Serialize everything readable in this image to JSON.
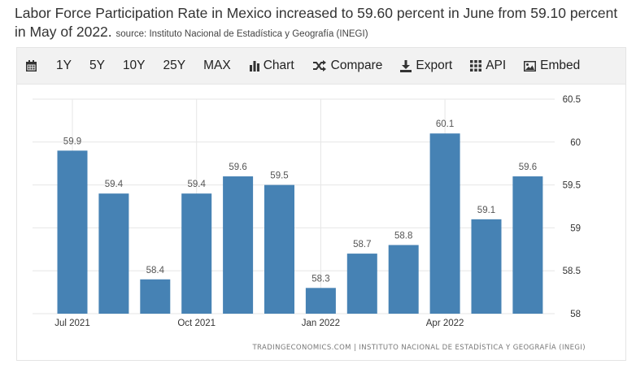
{
  "headline": {
    "text": "Labor Force Participation Rate in Mexico increased to 59.60 percent in June from 59.10 percent in May of 2022.",
    "source": "source: Instituto Nacional de Estadística y Geografía (INEGI)"
  },
  "toolbar": {
    "calendar_icon": "calendar-icon",
    "range_1y": "1Y",
    "range_5y": "5Y",
    "range_10y": "10Y",
    "range_25y": "25Y",
    "range_max": "MAX",
    "chart_label": "Chart",
    "compare_label": "Compare",
    "export_label": "Export",
    "api_label": "API",
    "embed_label": "Embed"
  },
  "footer": "TRADINGECONOMICS.COM | INSTITUTO NACIONAL DE ESTADÍSTICA Y GEOGRAFÍA (INEGI)",
  "colors": {
    "bar": "#4682b4",
    "grid": "#e6e6e6",
    "label": "#555555"
  },
  "chart_data": {
    "type": "bar",
    "categories": [
      "Jul 2021",
      "Aug 2021",
      "Sep 2021",
      "Oct 2021",
      "Nov 2021",
      "Dec 2021",
      "Jan 2022",
      "Feb 2022",
      "Mar 2022",
      "Apr 2022",
      "May 2022",
      "Jun 2022"
    ],
    "values": [
      59.9,
      59.4,
      58.4,
      59.4,
      59.6,
      59.5,
      58.3,
      58.7,
      58.8,
      60.1,
      59.1,
      59.6
    ],
    "data_labels": [
      "59.9",
      "59.4",
      "58.4",
      "59.4",
      "59.6",
      "59.5",
      "58.3",
      "58.7",
      "58.8",
      "60.1",
      "59.1",
      "59.6"
    ],
    "x_tick_labels": [
      {
        "category": "Jul 2021",
        "label": "Jul 2021"
      },
      {
        "category": "Oct 2021",
        "label": "Oct 2021"
      },
      {
        "category": "Jan 2022",
        "label": "Jan 2022"
      },
      {
        "category": "Apr 2022",
        "label": "Apr 2022"
      }
    ],
    "y_ticks": [
      58,
      58.5,
      59,
      59.5,
      60,
      60.5
    ],
    "y_tick_labels": [
      "58",
      "58.5",
      "59",
      "59.5",
      "60",
      "60.5"
    ],
    "ylim": [
      58,
      60.5
    ],
    "y_axis_side": "right",
    "grid": true,
    "legend": "none",
    "title": "",
    "xlabel": "",
    "ylabel": ""
  }
}
